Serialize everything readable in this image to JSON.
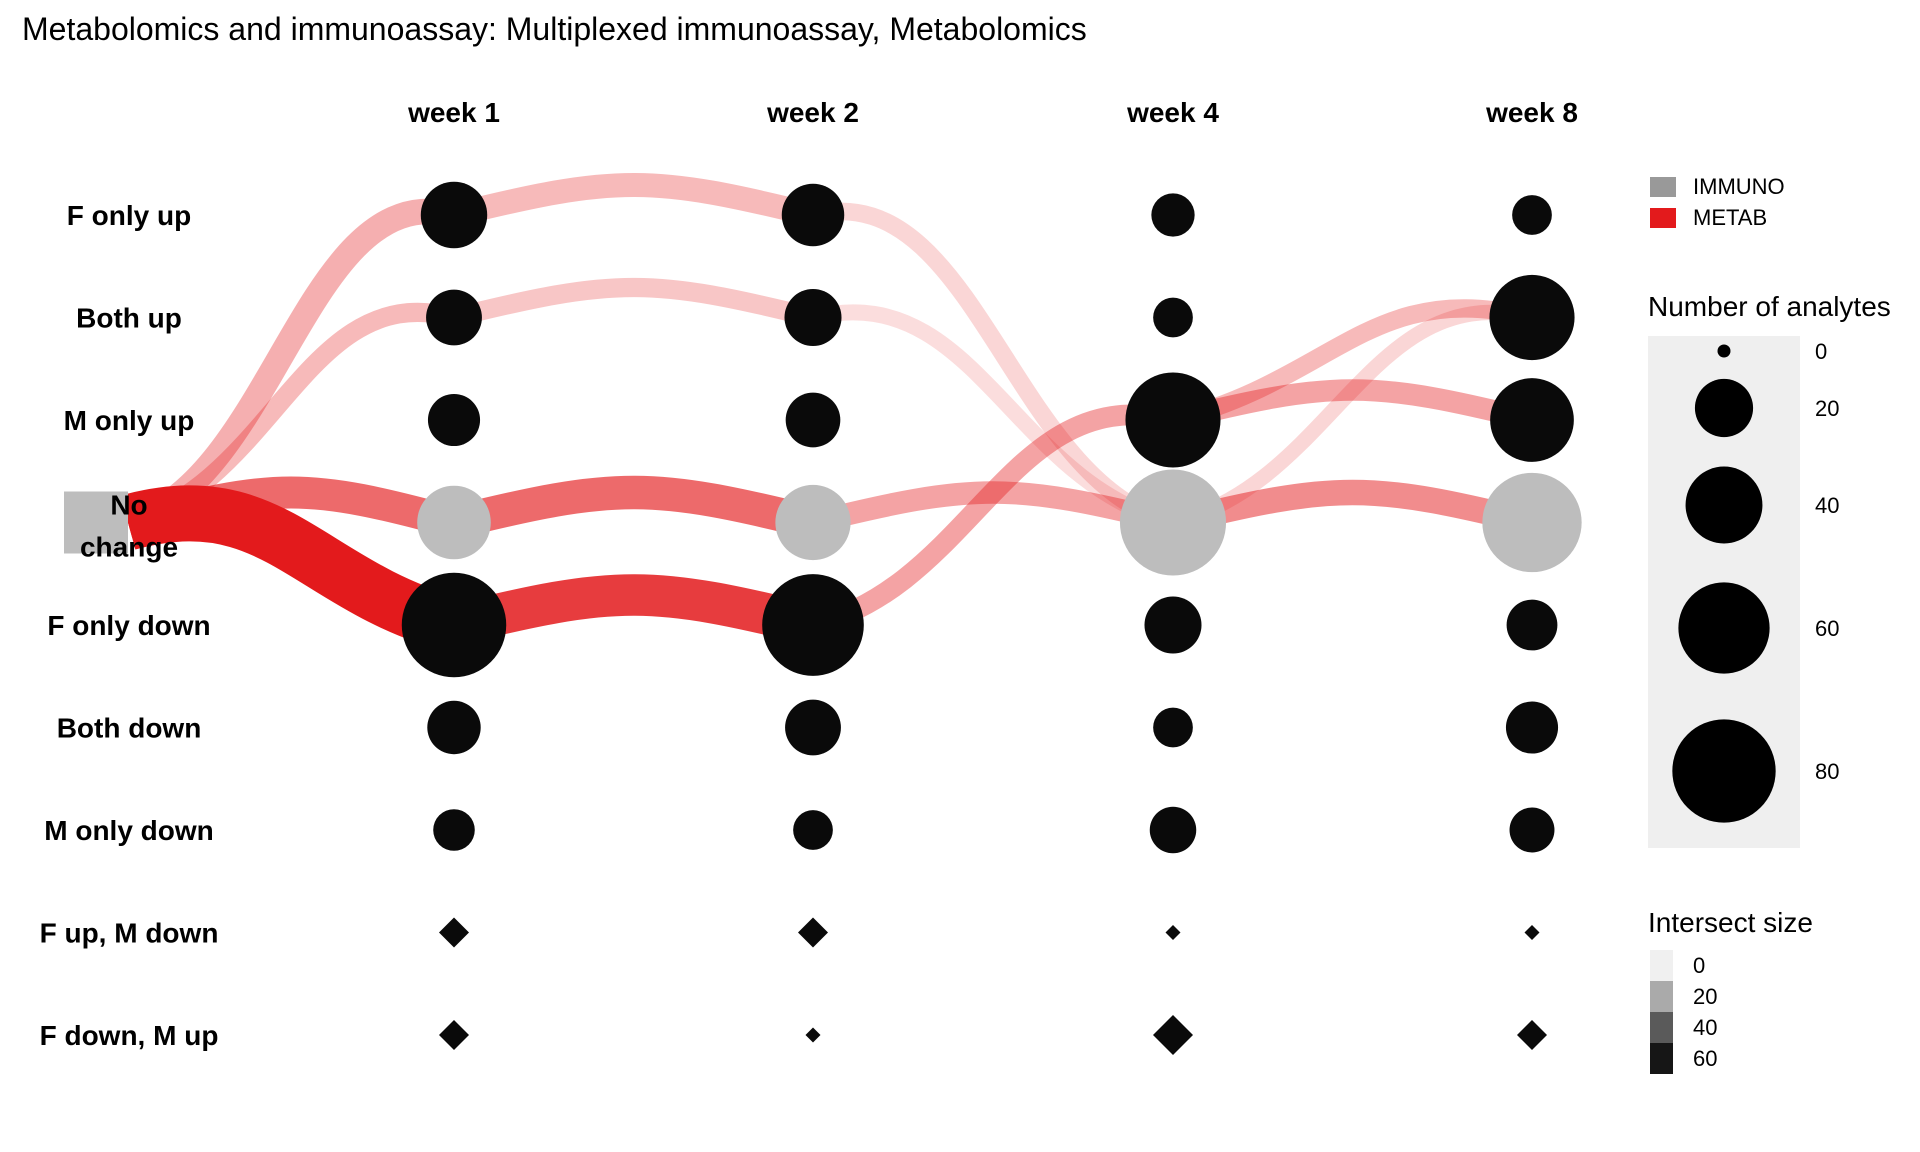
{
  "chart_data": {
    "type": "bubble-flow",
    "title": "Metabolomics and immunoassay: Multiplexed immunoassay, Metabolomics",
    "columns": [
      "week 1",
      "week 2",
      "week 4",
      "week 8"
    ],
    "rows": [
      "F only up",
      "Both up",
      "M only up",
      "No change",
      "F only down",
      "Both down",
      "M only down",
      "F up, M down",
      "F down, M up"
    ],
    "no_change_label_lines": [
      "No",
      "change"
    ],
    "sizes": {
      "F only up": [
        28,
        24,
        9,
        7
      ],
      "Both up": [
        18,
        19,
        7,
        51
      ],
      "M only up": [
        15,
        17,
        66,
        49
      ],
      "No change": [
        36,
        38,
        85,
        73
      ],
      "F only down": [
        82,
        77,
        19,
        14
      ],
      "Both down": [
        16,
        18,
        7,
        15
      ],
      "M only down": [
        8,
        7,
        11,
        10
      ]
    },
    "intersect_rows": {
      "F up, M down": [
        40,
        40,
        10,
        10
      ],
      "F down, M up": [
        40,
        10,
        60,
        40
      ]
    },
    "flows": [
      {
        "group": "METAB",
        "from": [
          0,
          "No change"
        ],
        "to": [
          1,
          "F only up"
        ],
        "size": 22,
        "opacity": 0.35
      },
      {
        "group": "METAB",
        "from": [
          0,
          "No change"
        ],
        "to": [
          1,
          "Both up"
        ],
        "size": 14,
        "opacity": 0.3
      },
      {
        "group": "METAB",
        "from": [
          0,
          "No change"
        ],
        "to": [
          1,
          "No change"
        ],
        "size": 30,
        "opacity": 0.65
      },
      {
        "group": "METAB",
        "from": [
          0,
          "No change"
        ],
        "to": [
          1,
          "F only down"
        ],
        "size": 60,
        "opacity": 1.0
      },
      {
        "group": "METAB",
        "from": [
          1,
          "F only up"
        ],
        "to": [
          2,
          "F only up"
        ],
        "size": 20,
        "opacity": 0.3
      },
      {
        "group": "METAB",
        "from": [
          1,
          "Both up"
        ],
        "to": [
          2,
          "Both up"
        ],
        "size": 14,
        "opacity": 0.25
      },
      {
        "group": "METAB",
        "from": [
          1,
          "No change"
        ],
        "to": [
          2,
          "No change"
        ],
        "size": 32,
        "opacity": 0.65
      },
      {
        "group": "METAB",
        "from": [
          1,
          "F only down"
        ],
        "to": [
          2,
          "F only down"
        ],
        "size": 42,
        "opacity": 0.85
      },
      {
        "group": "METAB",
        "from": [
          2,
          "F only up"
        ],
        "to": [
          3,
          "No change"
        ],
        "size": 12,
        "opacity": 0.18
      },
      {
        "group": "METAB",
        "from": [
          2,
          "Both up"
        ],
        "to": [
          3,
          "No change"
        ],
        "size": 10,
        "opacity": 0.15
      },
      {
        "group": "METAB",
        "from": [
          2,
          "No change"
        ],
        "to": [
          3,
          "No change"
        ],
        "size": 18,
        "opacity": 0.4
      },
      {
        "group": "METAB",
        "from": [
          2,
          "F only down"
        ],
        "to": [
          3,
          "M only up"
        ],
        "size": 16,
        "opacity": 0.4
      },
      {
        "group": "METAB",
        "from": [
          3,
          "M only up"
        ],
        "to": [
          4,
          "Both up"
        ],
        "size": 13,
        "opacity": 0.3
      },
      {
        "group": "METAB",
        "from": [
          3,
          "M only up"
        ],
        "to": [
          4,
          "M only up"
        ],
        "size": 17,
        "opacity": 0.4
      },
      {
        "group": "METAB",
        "from": [
          3,
          "No change"
        ],
        "to": [
          4,
          "Both up"
        ],
        "size": 9,
        "opacity": 0.18
      },
      {
        "group": "METAB",
        "from": [
          3,
          "No change"
        ],
        "to": [
          4,
          "No change"
        ],
        "size": 22,
        "opacity": 0.5
      }
    ],
    "legend_groups": [
      {
        "label": "IMMUNO",
        "color": "#999999"
      },
      {
        "label": "METAB",
        "color": "#e31a1c"
      }
    ],
    "size_legend": {
      "title": "Number of analytes",
      "values": [
        0,
        20,
        40,
        60,
        80
      ]
    },
    "intersect_legend": {
      "title": "Intersect size",
      "values": [
        0,
        20,
        40,
        60
      ],
      "colors": [
        "#f0f0f0",
        "#aaaaaa",
        "#5a5a5a",
        "#161616"
      ]
    },
    "colors": {
      "bubble": "#0a0a0a",
      "no_change": "#bdbdbd",
      "flow": "#e31a1c",
      "legend_panel": "#efefef"
    }
  }
}
